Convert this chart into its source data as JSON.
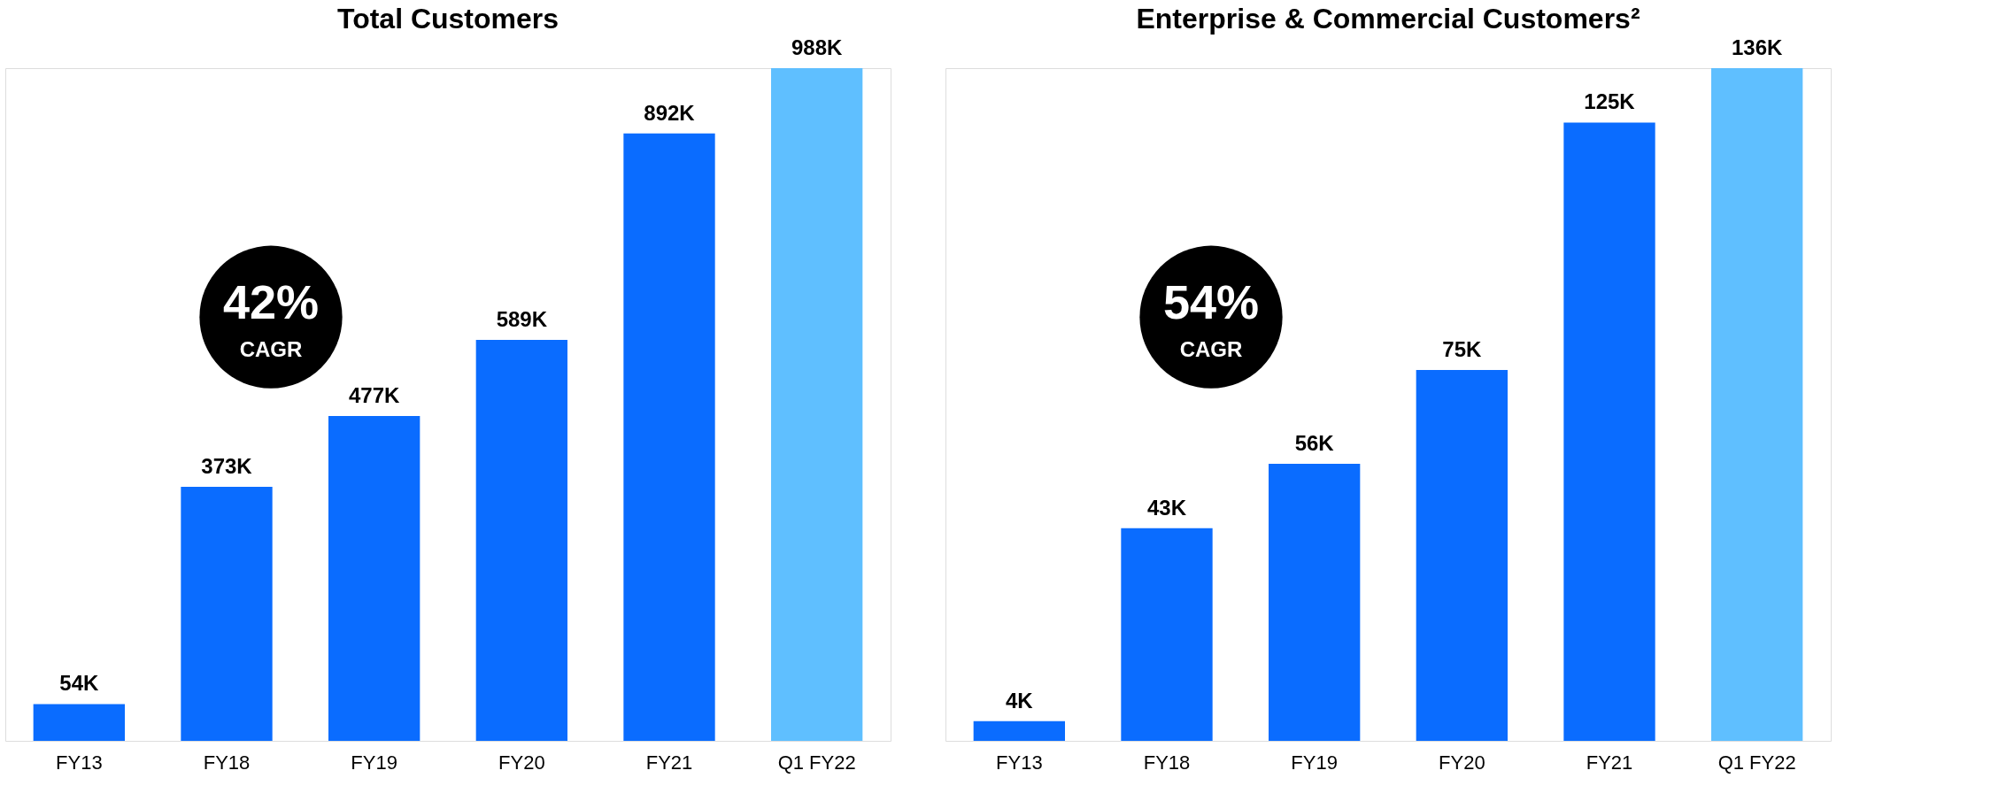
{
  "chart_data": [
    {
      "type": "bar",
      "title": "Total Customers",
      "categories": [
        "FY13",
        "FY18",
        "FY19",
        "FY20",
        "FY21",
        "Q1 FY22"
      ],
      "values": [
        54,
        373,
        477,
        589,
        892,
        988
      ],
      "colors": [
        "#0a6cff",
        "#0a6cff",
        "#0a6cff",
        "#0a6cff",
        "#0a6cff",
        "#5fbfff"
      ],
      "value_labels": [
        "54K",
        "373K",
        "477K",
        "589K",
        "892K",
        "988K"
      ],
      "annotations": [
        "42%",
        "CAGR"
      ]
    },
    {
      "type": "bar",
      "title": "Enterprise & Commercial Customers²",
      "categories": [
        "FY13",
        "FY18",
        "FY19",
        "FY20",
        "FY21",
        "Q1 FY22"
      ],
      "values": [
        4,
        43,
        56,
        75,
        125,
        136
      ],
      "colors": [
        "#0a6cff",
        "#0a6cff",
        "#0a6cff",
        "#0a6cff",
        "#0a6cff",
        "#5fbfff"
      ],
      "value_labels": [
        "4K",
        "43K",
        "56K",
        "75K",
        "125K",
        "136K"
      ],
      "annotations": [
        "54%",
        "CAGR"
      ]
    }
  ]
}
